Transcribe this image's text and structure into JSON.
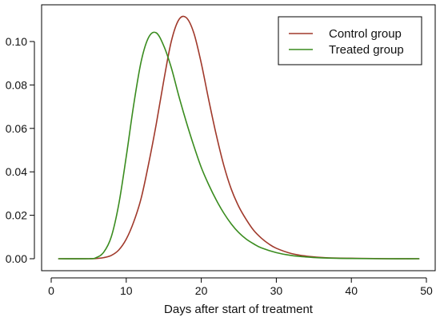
{
  "chart_data": {
    "type": "line",
    "title": "",
    "xlabel": "Days after start of treatment",
    "ylabel": "",
    "xlim": [
      0,
      50
    ],
    "ylim": [
      0,
      0.115
    ],
    "xticks": [
      0,
      10,
      20,
      30,
      40,
      50
    ],
    "xtick_labels": [
      "0",
      "10",
      "20",
      "30",
      "40",
      "50"
    ],
    "yticks": [
      0,
      0.02,
      0.04,
      0.06,
      0.08,
      0.1
    ],
    "ytick_labels": [
      "0.00",
      "0.02",
      "0.04",
      "0.06",
      "0.08",
      "0.10"
    ],
    "grid": false,
    "legend_position": "top-right",
    "series": [
      {
        "name": "Control group",
        "color": "#a0392b",
        "x": [
          1,
          5,
          6,
          7,
          8,
          9,
          10,
          11,
          12,
          13,
          14,
          15,
          16,
          17,
          18,
          19,
          20,
          21,
          22,
          23,
          24,
          25,
          26,
          27,
          28,
          29,
          30,
          32,
          34,
          36,
          38,
          40,
          42,
          45,
          49
        ],
        "y": [
          0,
          0,
          0.0001,
          0.0005,
          0.0015,
          0.004,
          0.009,
          0.017,
          0.028,
          0.044,
          0.062,
          0.082,
          0.1,
          0.11,
          0.111,
          0.104,
          0.09,
          0.073,
          0.057,
          0.043,
          0.032,
          0.024,
          0.018,
          0.013,
          0.0095,
          0.0068,
          0.0048,
          0.0024,
          0.0012,
          0.0006,
          0.0003,
          0.0002,
          0.0001,
          0,
          0
        ]
      },
      {
        "name": "Treated group",
        "color": "#3a8c1f",
        "x": [
          1,
          5,
          6,
          7,
          8,
          9,
          10,
          11,
          12,
          13,
          14,
          15,
          16,
          17,
          18,
          19,
          20,
          21,
          22,
          23,
          24,
          25,
          26,
          27,
          28,
          30,
          32,
          34,
          36,
          38,
          40,
          44,
          49
        ],
        "y": [
          0,
          0,
          0.0005,
          0.003,
          0.01,
          0.025,
          0.047,
          0.071,
          0.091,
          0.102,
          0.104,
          0.098,
          0.088,
          0.075,
          0.063,
          0.052,
          0.042,
          0.034,
          0.027,
          0.021,
          0.016,
          0.012,
          0.009,
          0.0068,
          0.005,
          0.0028,
          0.0015,
          0.0008,
          0.0004,
          0.0002,
          0.0001,
          0,
          0
        ]
      }
    ]
  }
}
